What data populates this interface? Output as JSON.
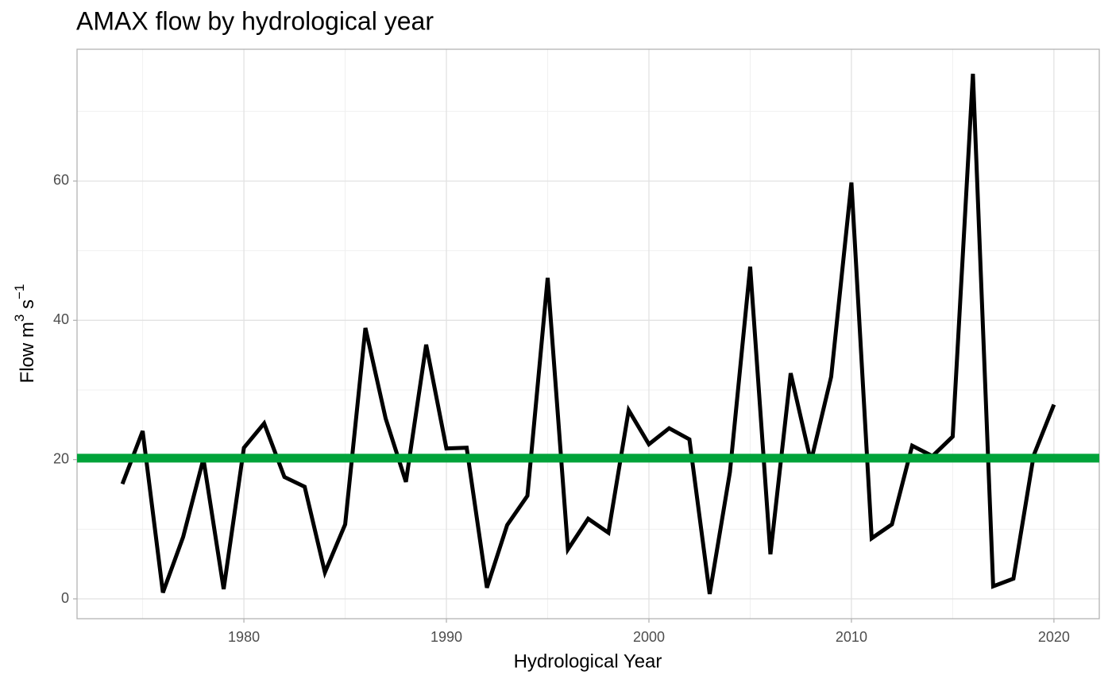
{
  "chart_data": {
    "type": "line",
    "title": "AMAX flow by hydrological year",
    "x_label": "Hydrological Year",
    "y_label": [
      "Flow m",
      "3",
      " s",
      "−1"
    ],
    "x": [
      1974,
      1975,
      1976,
      1977,
      1978,
      1979,
      1980,
      1981,
      1982,
      1983,
      1984,
      1985,
      1986,
      1987,
      1988,
      1989,
      1990,
      1991,
      1992,
      1993,
      1994,
      1995,
      1996,
      1997,
      1998,
      1999,
      2000,
      2001,
      2002,
      2003,
      2004,
      2005,
      2006,
      2007,
      2008,
      2009,
      2010,
      2011,
      2012,
      2013,
      2014,
      2015,
      2016,
      2017,
      2018,
      2019,
      2020
    ],
    "series": [
      {
        "color": "#000000",
        "values": [
          16.5,
          24.1,
          0.9,
          8.9,
          20.1,
          1.4,
          21.7,
          25.2,
          17.5,
          16.1,
          3.8,
          10.7,
          38.9,
          25.9,
          16.8,
          36.5,
          21.6,
          21.7,
          1.6,
          10.6,
          14.8,
          46.1,
          7.1,
          11.5,
          9.5,
          27.1,
          22.2,
          24.5,
          22.9,
          0.7,
          18.2,
          47.7,
          6.4,
          32.4,
          19.7,
          31.9,
          59.8,
          8.7,
          10.7,
          22.0,
          20.5,
          23.3,
          75.4,
          1.8,
          2.9,
          20.6,
          27.9
        ]
      }
    ],
    "reference_line": {
      "value": 20.2,
      "color": "#00a33a"
    },
    "xlim": [
      1971.76,
      2022.24
    ],
    "ylim": [
      -2.85,
      78.93
    ],
    "xticks": [
      1980,
      1990,
      2000,
      2010,
      2020
    ],
    "yticks": [
      0,
      20,
      40,
      60
    ],
    "minor_xticks": [
      1975,
      1985,
      1995,
      2005,
      2015
    ],
    "minor_yticks": [
      10,
      30,
      50,
      70
    ],
    "grid": true
  }
}
